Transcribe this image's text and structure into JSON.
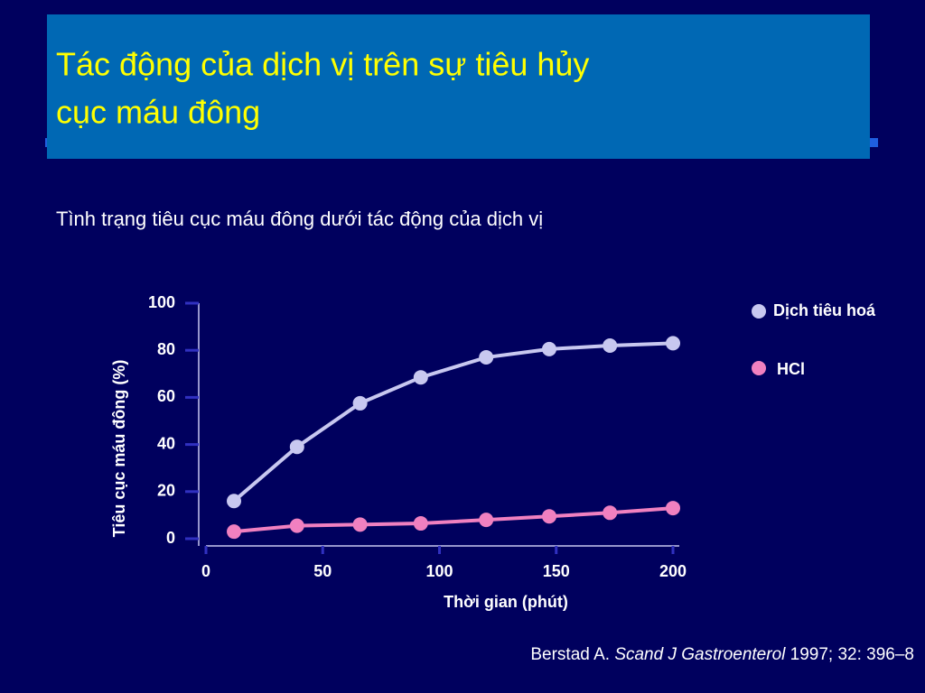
{
  "slide_title": [
    "Tác động của dịch vị trên sự tiêu hủy",
    "cục máu đông"
  ],
  "chart_data": {
    "type": "line",
    "title": "Tình trạng tiêu cục máu đông dưới tác động của dịch vị",
    "x_label": "Thời gian (phút)",
    "y_label": "Tiêu cục máu đông (%)",
    "x": [
      12,
      39,
      66,
      92,
      120,
      147,
      173,
      200
    ],
    "series": [
      {
        "name": "Dịch tiêu hoá",
        "color": "#c8c8f0",
        "values": [
          16,
          39,
          57.5,
          68.5,
          77,
          80.5,
          82,
          83
        ]
      },
      {
        "name": "HCl",
        "color": "#f080c0",
        "values": [
          3,
          5.5,
          6,
          6.5,
          8,
          9.5,
          11,
          13
        ]
      }
    ],
    "xlim": [
      0,
      200
    ],
    "xticks": [
      0,
      50,
      100,
      150,
      200
    ],
    "ylim": [
      0,
      100
    ],
    "yticks": [
      0,
      20,
      40,
      60,
      80,
      100
    ]
  },
  "citation": {
    "author": "Berstad A.",
    "journal": "Scand J Gastroenterol",
    "details": "1997; 32: 396–8"
  }
}
